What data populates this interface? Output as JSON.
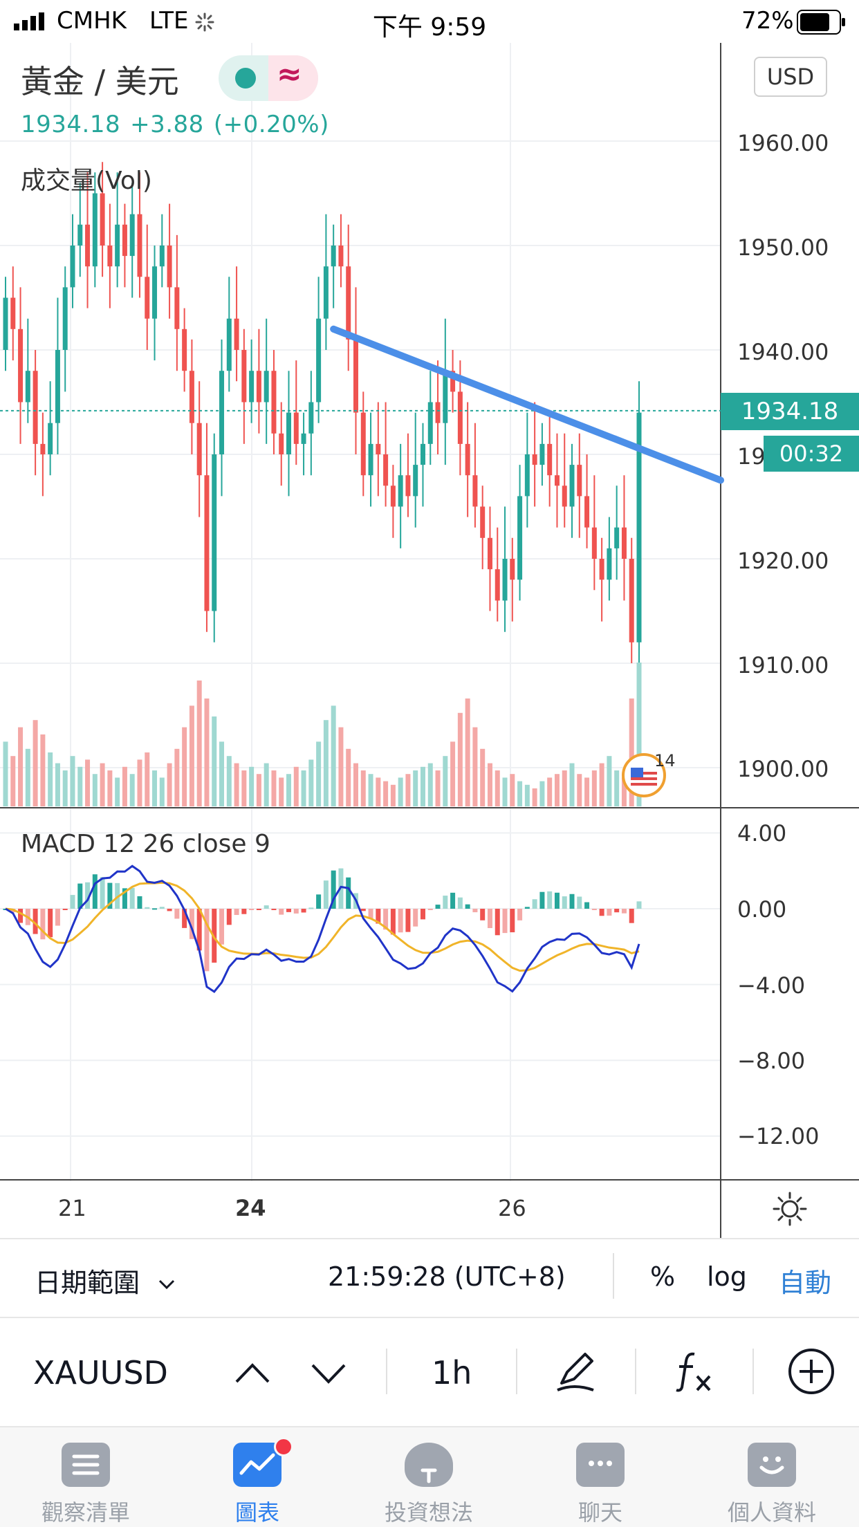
{
  "status_bar": {
    "carrier": "CMHK",
    "network": "LTE",
    "time": "下午 9:59",
    "battery": "72%"
  },
  "chart": {
    "pair_title": "黃金 / 美元",
    "price": "1934.18",
    "change": "+3.88",
    "change_pct": "(+0.20%)",
    "currency_button": "USD",
    "volume_label": "成交量(Vol)",
    "macd_label": "MACD 12 26 close 9",
    "current_price_tag": "1934.18",
    "countdown_tag": "00:32",
    "event_count": "14",
    "colors": {
      "up": "#26a69a",
      "down": "#ef5350",
      "trendline": "#4c8fe8",
      "macd": "#2034c8",
      "signal": "#f0b429"
    },
    "icons": {
      "toggle_dot": "dot-icon",
      "toggle_wave": "wave-icon",
      "settings": "sun-gear-icon",
      "event": "us-flag-icon"
    }
  },
  "toggle_wave_glyph": "≈",
  "price_axis": [
    "1960.00",
    "1950.00",
    "1940.00",
    "19",
    "1920.00",
    "1910.00",
    "1900.00"
  ],
  "macd_axis": [
    "4.00",
    "0.00",
    "−4.00",
    "−8.00",
    "−12.00"
  ],
  "time_axis": [
    {
      "label": "21",
      "bold": false
    },
    {
      "label": "24",
      "bold": true
    },
    {
      "label": "26",
      "bold": false
    }
  ],
  "toolbar": {
    "date_range": "日期範圍",
    "timestamp": "21:59:28 (UTC+8)",
    "percent": "%",
    "log": "log",
    "auto": "自動"
  },
  "symbol_bar": {
    "symbol": "XAUUSD",
    "timeframe": "1h"
  },
  "tabs": [
    {
      "label": "觀察清單",
      "icon": "list-icon"
    },
    {
      "label": "圖表",
      "icon": "chart-icon",
      "active": true
    },
    {
      "label": "投資想法",
      "icon": "lightbulb-icon"
    },
    {
      "label": "聊天",
      "icon": "chat-icon"
    },
    {
      "label": "個人資料",
      "icon": "profile-icon"
    }
  ],
  "chart_data": {
    "type": "candlestick",
    "symbol": "XAUUSD",
    "interval": "1h",
    "x_ticks": [
      "21",
      "24",
      "26"
    ],
    "price_ylim": [
      1896,
      1968
    ],
    "price_ticks": [
      1900,
      1910,
      1920,
      1930,
      1940,
      1950,
      1960
    ],
    "last_price": 1934.18,
    "trendline": {
      "start": [
        44,
        1942
      ],
      "end": [
        105,
        1925
      ]
    },
    "closes": [
      1945,
      1942,
      1935,
      1938,
      1931,
      1930,
      1933,
      1940,
      1946,
      1950,
      1952,
      1948,
      1955,
      1950,
      1948,
      1952,
      1949,
      1953,
      1947,
      1943,
      1948,
      1950,
      1946,
      1942,
      1938,
      1933,
      1928,
      1915,
      1930,
      1938,
      1943,
      1940,
      1935,
      1938,
      1935,
      1938,
      1932,
      1930,
      1934,
      1931,
      1932,
      1935,
      1943,
      1948,
      1950,
      1948,
      1941,
      1934,
      1928,
      1931,
      1930,
      1927,
      1925,
      1928,
      1926,
      1929,
      1931,
      1935,
      1933,
      1938,
      1936,
      1931,
      1928,
      1925,
      1922,
      1919,
      1916,
      1920,
      1918,
      1926,
      1930,
      1929,
      1931,
      1928,
      1927,
      1925,
      1929,
      1926,
      1923,
      1920,
      1918,
      1921,
      1923,
      1920,
      1912,
      1934
    ],
    "volume": [
      18,
      14,
      22,
      16,
      24,
      20,
      15,
      12,
      10,
      14,
      11,
      13,
      9,
      12,
      10,
      8,
      11,
      9,
      13,
      15,
      10,
      8,
      12,
      16,
      22,
      28,
      35,
      30,
      25,
      18,
      14,
      12,
      10,
      11,
      9,
      12,
      10,
      8,
      9,
      11,
      10,
      13,
      18,
      24,
      28,
      22,
      16,
      12,
      10,
      9,
      8,
      7,
      6,
      8,
      9,
      10,
      11,
      12,
      10,
      14,
      18,
      26,
      30,
      22,
      16,
      12,
      10,
      8,
      9,
      7,
      6,
      5,
      7,
      8,
      9,
      10,
      12,
      9,
      8,
      10,
      12,
      14,
      10,
      8,
      30,
      40
    ],
    "macd": {
      "ylim": [
        -13.5,
        5
      ],
      "ticks": [
        4,
        0,
        -4,
        -8,
        -12
      ]
    }
  }
}
